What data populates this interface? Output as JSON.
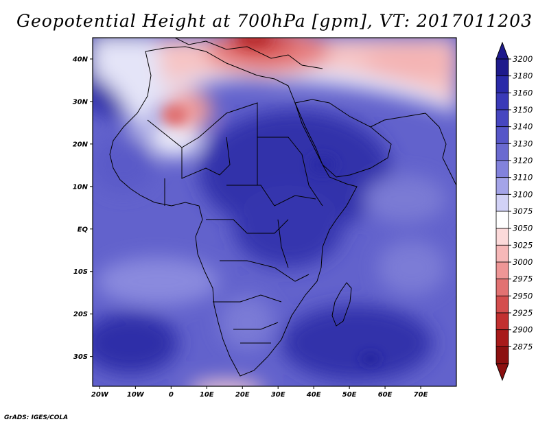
{
  "title": "Geopotential Height at 700hPa [gpm], VT: 2017011203",
  "footer": "GrADS: IGES/COLA",
  "map": {
    "lon_labels": [
      "20W",
      "10W",
      "0",
      "10E",
      "20E",
      "30E",
      "40E",
      "50E",
      "60E",
      "70E"
    ],
    "lat_labels": [
      "40N",
      "30N",
      "20N",
      "10N",
      "EQ",
      "10S",
      "20S",
      "30S"
    ],
    "lon_range": [
      -22,
      80
    ],
    "lat_range": [
      -37,
      45
    ]
  },
  "colorbar": {
    "levels": [
      "3200",
      "3180",
      "3160",
      "3150",
      "3140",
      "3130",
      "3120",
      "3110",
      "3100",
      "3075",
      "3050",
      "3025",
      "3000",
      "2975",
      "2950",
      "2925",
      "2900",
      "2875"
    ],
    "colors": [
      "#1e1a8c",
      "#2a2aa8",
      "#3a3ab8",
      "#4646c0",
      "#5656c8",
      "#6a6ad0",
      "#8282dc",
      "#a4a4e8",
      "#d2d2f6",
      "#ffffff",
      "#fcdada",
      "#f6b8b8",
      "#ee9696",
      "#e27272",
      "#d44e4e",
      "#c23030",
      "#a81a1a",
      "#8c1010"
    ],
    "top_arrow_color": "#1e1a8c",
    "bottom_arrow_color": "#8c1010"
  }
}
